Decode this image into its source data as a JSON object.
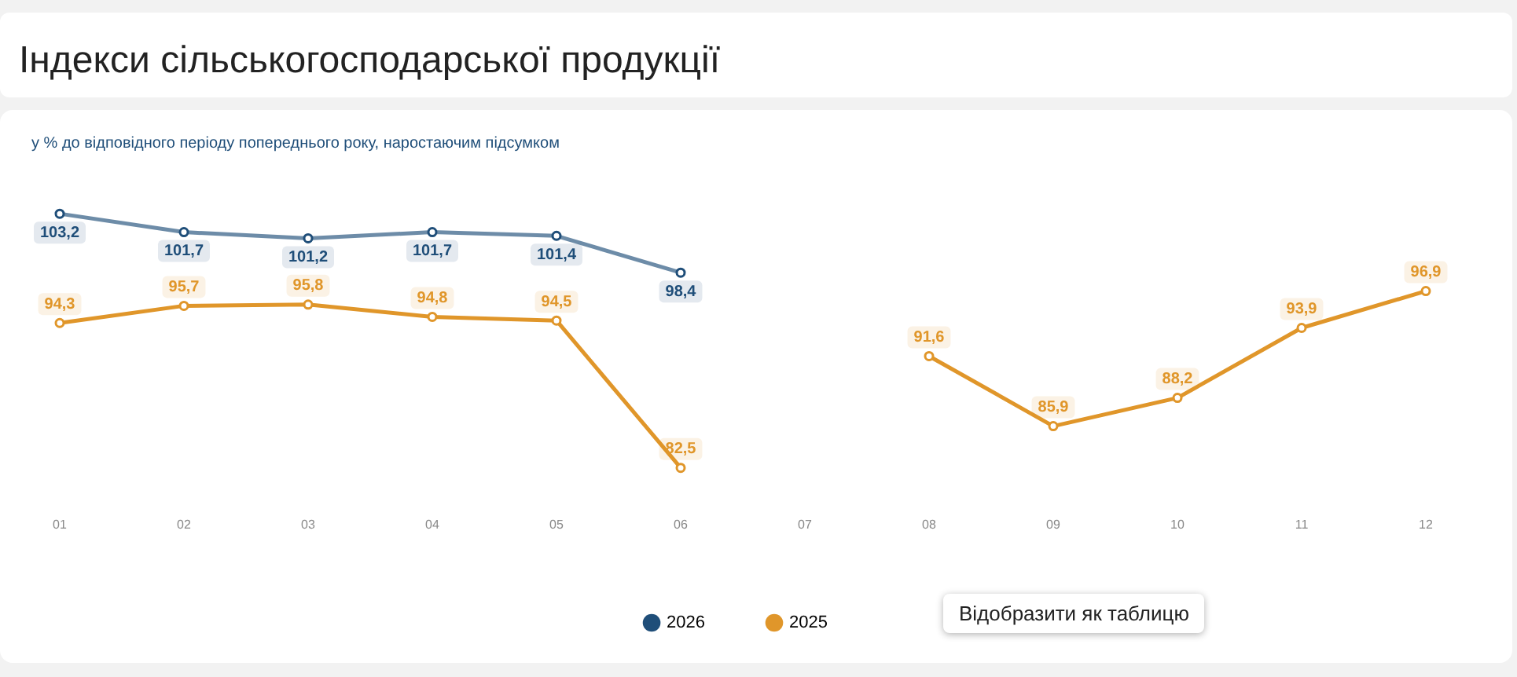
{
  "chart_data": {
    "type": "line",
    "title": "Індекси сільськогосподарської продукції",
    "subtitle": "у % до відповідного періоду попереднього року, наростаючим підсумком",
    "categories": [
      "01",
      "02",
      "03",
      "04",
      "05",
      "06",
      "07",
      "08",
      "09",
      "10",
      "11",
      "12"
    ],
    "series": [
      {
        "name": "2026",
        "color": "#1f4e79",
        "values": [
          103.2,
          101.7,
          101.2,
          101.7,
          101.4,
          98.4,
          null,
          null,
          null,
          null,
          null,
          null
        ],
        "value_labels": [
          "103,2",
          "101,7",
          "101,2",
          "101,7",
          "101,4",
          "98,4",
          null,
          null,
          null,
          null,
          null,
          null
        ]
      },
      {
        "name": "2025",
        "color": "#e0962a",
        "values": [
          94.3,
          95.7,
          95.8,
          94.8,
          94.5,
          82.5,
          null,
          91.6,
          85.9,
          88.2,
          93.9,
          96.9
        ],
        "value_labels": [
          "94,3",
          "95,7",
          "95,8",
          "94,8",
          "94,5",
          "82,5",
          null,
          "91,6",
          "85,9",
          "88,2",
          "93,9",
          "96,9"
        ]
      }
    ],
    "annotations": [
      "Відобразити як таблицю"
    ],
    "grid": false,
    "legend": "bottom",
    "marker": "circle",
    "line_style": "solid"
  }
}
